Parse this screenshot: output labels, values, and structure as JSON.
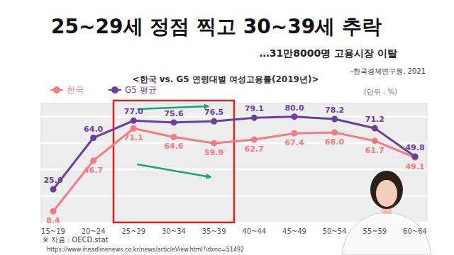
{
  "slide": {
    "headline": "25~29세 정점 찍고 30~39세 추락",
    "subheadline": "…31만8000명 고용시장 이탈",
    "source": "-한국경제연구원, 2021",
    "url": "https://www.iheadlinenews.co.kr/news/articleView.html?idxno=51492"
  },
  "chart_data": {
    "type": "line",
    "title": "<한국 vs. G5 연령대별 여성고용률(2019년)>",
    "ylabel": "(단위 : %)",
    "annotations": [
      "※ 자료 : OECD.stat"
    ],
    "categories": [
      "15~19",
      "20~24",
      "25~29",
      "30~34",
      "35~39",
      "40~44",
      "45~49",
      "50~54",
      "55~59",
      "60~64"
    ],
    "series": [
      {
        "name": "한국",
        "color": "#f27b86",
        "marker": "circle",
        "values": [
          8.4,
          46.7,
          71.1,
          64.6,
          59.9,
          62.7,
          67.4,
          68.0,
          61.7,
          49.1
        ],
        "value_labels": [
          "8.4",
          "46.7",
          "71.1",
          "64.6",
          "59.9",
          "62.7",
          "67.4",
          "68.0",
          "61.7",
          "49.1"
        ]
      },
      {
        "name": "G5 평균",
        "color": "#6b3fa0",
        "marker": "circle",
        "values": [
          25.0,
          64.0,
          77.0,
          75.6,
          76.5,
          79.1,
          80.0,
          78.2,
          71.2,
          49.8
        ],
        "value_labels": [
          "25.0",
          "64.0",
          "77.0",
          "75.6",
          "76.5",
          "79.1",
          "80.0",
          "78.2",
          "71.2",
          "49.8"
        ]
      }
    ],
    "ylim": [
      0,
      90
    ],
    "yticks": [
      0,
      20,
      40,
      60,
      80
    ],
    "grid": true,
    "legend": "top-left",
    "data_labels": true,
    "tick_labels": "x"
  }
}
